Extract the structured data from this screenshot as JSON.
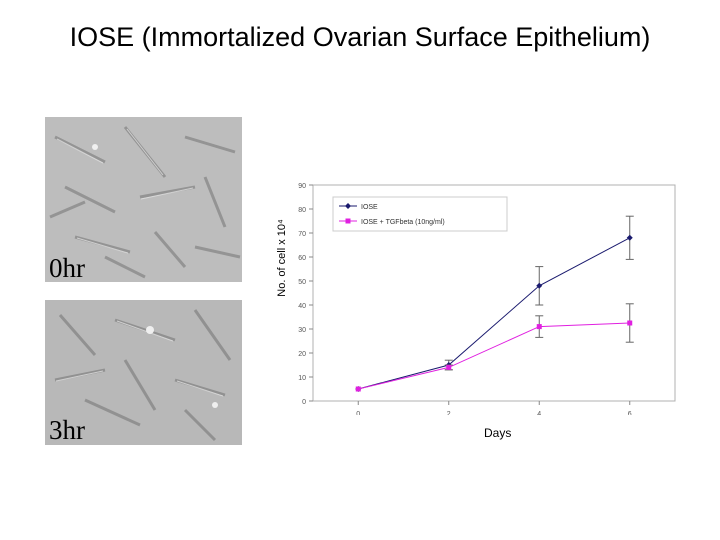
{
  "slide": {
    "title": "IOSE (Immortalized Ovarian Surface Epithelium)"
  },
  "images": [
    {
      "label": "0hr"
    },
    {
      "label": "3hr"
    }
  ],
  "chart_data": {
    "type": "line",
    "xlabel": "Days",
    "ylabel": "No. of cell x 10⁴",
    "x": [
      0,
      2,
      4,
      6
    ],
    "ylim": [
      0,
      90
    ],
    "yticks": [
      0,
      10,
      20,
      30,
      40,
      50,
      60,
      70,
      80,
      90
    ],
    "xticks": [
      0,
      2,
      4,
      6
    ],
    "legend_position": "top-left",
    "series": [
      {
        "name": "IOSE",
        "color": "#1a1a6e",
        "marker": "diamond",
        "values": [
          5,
          15,
          48,
          68
        ],
        "errors": [
          0,
          2,
          8,
          9
        ]
      },
      {
        "name": "IOSE + TGFbeta (10ng/ml)",
        "color": "#e020e0",
        "marker": "square",
        "values": [
          5,
          14,
          31,
          32.5
        ],
        "errors": [
          0,
          1,
          4.5,
          8
        ]
      }
    ]
  }
}
